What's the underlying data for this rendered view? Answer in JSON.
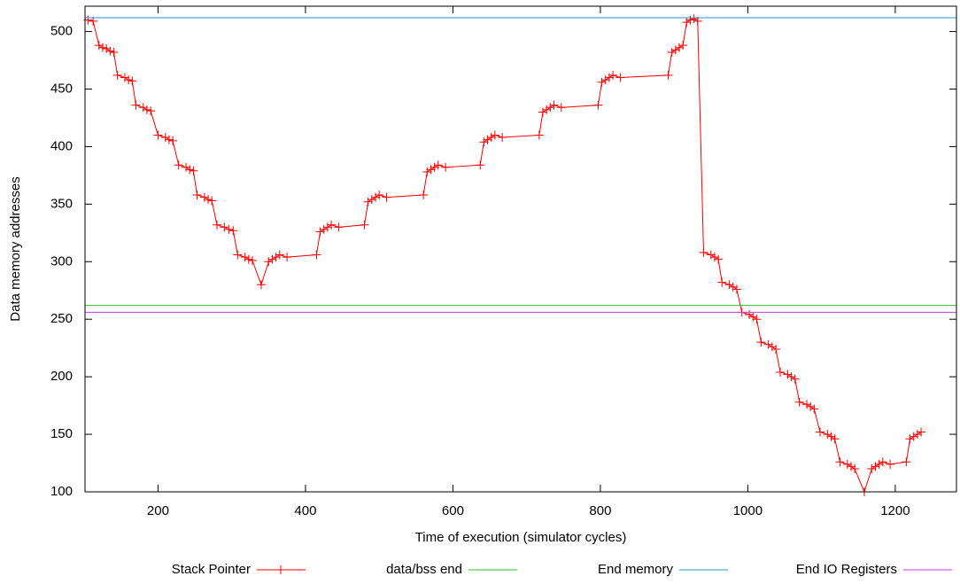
{
  "chart_data": {
    "type": "line",
    "xlabel": "Time of execution (simulator cycles)",
    "ylabel": "Data memory addresses",
    "xlim": [
      101,
      1283
    ],
    "ylim": [
      100,
      522
    ],
    "xticks": [
      200,
      400,
      600,
      800,
      1000,
      1200
    ],
    "yticks": [
      100,
      150,
      200,
      250,
      300,
      350,
      400,
      450,
      500
    ],
    "legend": "bottom",
    "series": [
      {
        "name": "Stack Pointer",
        "color": "#ff0000",
        "marker": "plus",
        "x": [
          105,
          112,
          120,
          125,
          130,
          135,
          140,
          145,
          155,
          160,
          165,
          170,
          180,
          185,
          190,
          200,
          210,
          215,
          220,
          228,
          238,
          243,
          248,
          253,
          263,
          268,
          273,
          280,
          290,
          296,
          302,
          308,
          318,
          323,
          328,
          340,
          350,
          355,
          360,
          365,
          375,
          415,
          420,
          425,
          430,
          435,
          445,
          480,
          485,
          490,
          495,
          500,
          510,
          560,
          565,
          570,
          575,
          580,
          590,
          637,
          642,
          647,
          652,
          657,
          667,
          717,
          722,
          727,
          732,
          737,
          747,
          797,
          802,
          807,
          812,
          817,
          827,
          892,
          897,
          902,
          907,
          912,
          917,
          922,
          927,
          932,
          940,
          950,
          955,
          960,
          965,
          975,
          980,
          985,
          992,
          1002,
          1007,
          1012,
          1018,
          1028,
          1033,
          1038,
          1044,
          1054,
          1059,
          1064,
          1070,
          1080,
          1085,
          1090,
          1098,
          1108,
          1113,
          1118,
          1125,
          1135,
          1140,
          1145,
          1158,
          1168,
          1173,
          1178,
          1183,
          1193,
          1215,
          1220,
          1225,
          1230,
          1235
        ],
        "values": [
          510,
          509,
          488,
          486,
          485,
          483,
          482,
          462,
          460,
          458,
          457,
          436,
          434,
          432,
          431,
          410,
          408,
          406,
          405,
          384,
          382,
          380,
          379,
          358,
          356,
          354,
          353,
          332,
          330,
          328,
          327,
          306,
          304,
          302,
          301,
          280,
          300,
          302,
          304,
          306,
          304,
          306,
          326,
          328,
          330,
          332,
          330,
          332,
          352,
          354,
          356,
          358,
          356,
          358,
          378,
          380,
          382,
          384,
          382,
          384,
          404,
          406,
          408,
          410,
          408,
          410,
          430,
          432,
          434,
          436,
          434,
          436,
          456,
          458,
          460,
          462,
          460,
          462,
          482,
          484,
          486,
          488,
          508,
          510,
          511,
          509,
          308,
          306,
          304,
          302,
          282,
          280,
          278,
          276,
          256,
          254,
          252,
          250,
          230,
          228,
          226,
          224,
          204,
          202,
          200,
          198,
          178,
          176,
          174,
          172,
          152,
          150,
          148,
          146,
          126,
          124,
          122,
          120,
          100,
          120,
          122,
          124,
          126,
          124,
          126,
          146,
          148,
          150,
          152
        ]
      },
      {
        "name": "data/bss end",
        "color": "#33b833",
        "values": [
          262
        ]
      },
      {
        "name": "End memory",
        "color": "#2f8fcf",
        "values": [
          512
        ]
      },
      {
        "name": "End IO Registers",
        "color": "#c040e0",
        "values": [
          256
        ]
      }
    ]
  }
}
